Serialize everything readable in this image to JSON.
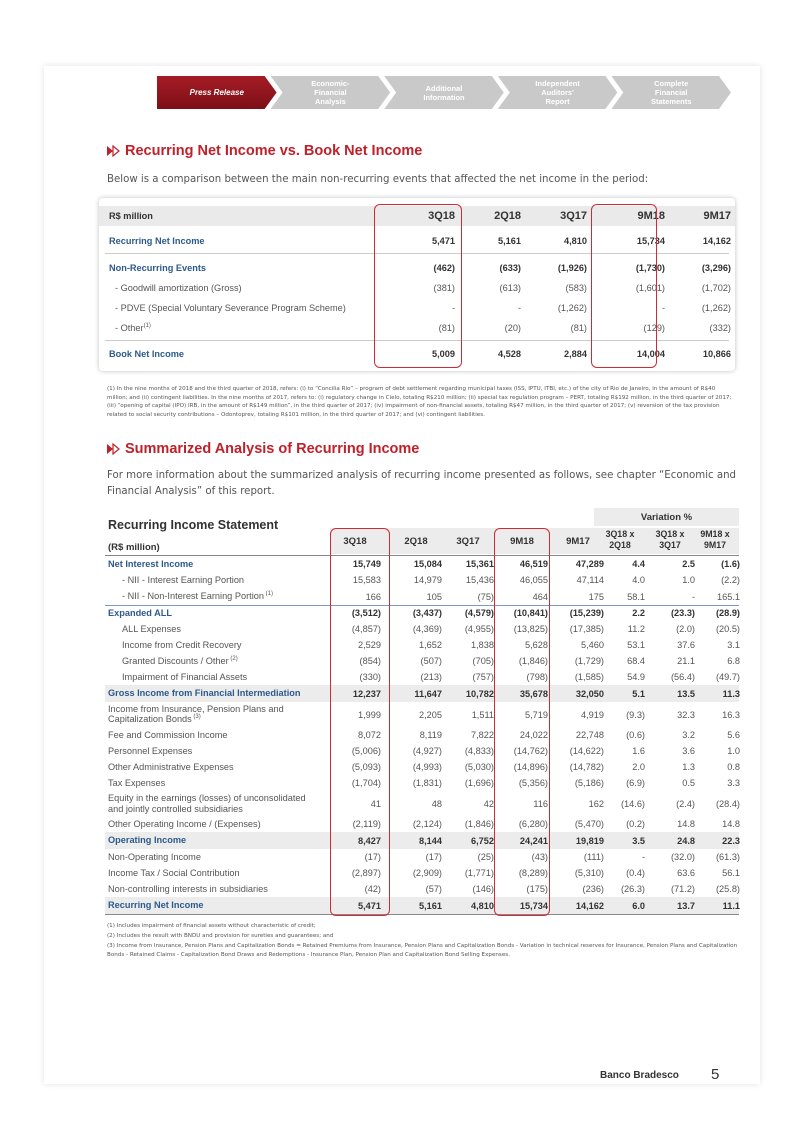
{
  "nav": {
    "tabs": [
      {
        "label": "Press Release"
      },
      {
        "label": "Economic-\nFinancial\nAnalysis"
      },
      {
        "label": "Additional\nInformation"
      },
      {
        "label": "Independent\nAuditors'\nReport"
      },
      {
        "label": "Complete\nFinancial\nStatements"
      }
    ]
  },
  "section1": {
    "title": "Recurring Net Income vs. Book Net Income",
    "intro": "Below is a comparison between the main non-recurring events that affected the net income in the period:"
  },
  "table1": {
    "header": {
      "label": "R$ million",
      "cols": [
        "3Q18",
        "2Q18",
        "3Q17",
        "9M18",
        "9M17"
      ]
    },
    "rows": [
      {
        "label": "Recurring Net Income",
        "values": [
          "5,471",
          "5,161",
          "4,810",
          "15,734",
          "14,162"
        ]
      },
      {
        "label": "Non-Recurring Events",
        "values": [
          "(462)",
          "(633)",
          "(1,926)",
          "(1,730)",
          "(3,296)"
        ]
      },
      {
        "label": "- Goodwill amortization (Gross)",
        "values": [
          "(381)",
          "(613)",
          "(583)",
          "(1,601)",
          "(1,702)"
        ]
      },
      {
        "label": "- PDVE (Special Voluntary Severance Program Scheme)",
        "values": [
          "-",
          "-",
          "(1,262)",
          "-",
          "(1,262)"
        ]
      },
      {
        "label": "- Other",
        "sup": "(1)",
        "values": [
          "(81)",
          "(20)",
          "(81)",
          "(129)",
          "(332)"
        ]
      },
      {
        "label": "Book Net Income",
        "values": [
          "5,009",
          "4,528",
          "2,884",
          "14,004",
          "10,866"
        ]
      }
    ]
  },
  "footnote1": "(1) In the nine months of 2018 and the third quarter of 2018, refers: (i) to “Concilia Rio” – program of debt settlement regarding municipal taxes (ISS, IPTU, ITBI, etc.) of the city of Rio de Janeiro, in the amount of R$40 million; and (ii) contingent liabilities. In the nine months of 2017, refers to: (i) regulatory change in Cielo, totaling R$210 million; (ii) special tax regulation program – PERT, totaling R$192 million, in the third quarter of 2017; (iii) “opening of capital (IPO) IRB, in the amount of R$149 million”, in the third quarter of 2017; (iv) impairment of non-financial assets, totaling R$47 million, in the third quarter of 2017; (v) reversion of the tax provision related to social security contributions – Odontoprev, totaling R$101 million, in the third quarter of 2017; and (vi) contingent liabilities.",
  "section2": {
    "title": "Summarized Analysis of Recurring Income",
    "intro": "For more information about the summarized analysis of recurring income presented as follows, see chapter “Economic and Financial Analysis” of this report."
  },
  "table2": {
    "title": "Recurring Income Statement",
    "unit": "(R$ million)",
    "variation_label": "Variation %",
    "cols": [
      "3Q18",
      "2Q18",
      "3Q17",
      "9M18",
      "9M17"
    ],
    "var_cols": [
      "3Q18 x\n2Q18",
      "3Q18 x\n3Q17",
      "9M18 x\n9M17"
    ],
    "rows": [
      {
        "label": "Net Interest Income",
        "values": [
          "15,749",
          "15,084",
          "15,361",
          "46,519",
          "47,289",
          "4.4",
          "2.5",
          "(1.6)"
        ]
      },
      {
        "label": "- NII - Interest Earning Portion",
        "values": [
          "15,583",
          "14,979",
          "15,436",
          "46,055",
          "47,114",
          "4.0",
          "1.0",
          "(2.2)"
        ]
      },
      {
        "label": "- NII - Non-Interest Earning Portion",
        "sup": "(1)",
        "values": [
          "166",
          "105",
          "(75)",
          "464",
          "175",
          "58.1",
          "-",
          "165.1"
        ]
      },
      {
        "label": "Expanded ALL",
        "values": [
          "(3,512)",
          "(3,437)",
          "(4,579)",
          "(10,841)",
          "(15,239)",
          "2.2",
          "(23.3)",
          "(28.9)"
        ]
      },
      {
        "label": "ALL Expenses",
        "values": [
          "(4,857)",
          "(4,369)",
          "(4,955)",
          "(13,825)",
          "(17,385)",
          "11.2",
          "(2.0)",
          "(20.5)"
        ]
      },
      {
        "label": "Income from Credit Recovery",
        "values": [
          "2,529",
          "1,652",
          "1,838",
          "5,628",
          "5,460",
          "53.1",
          "37.6",
          "3.1"
        ]
      },
      {
        "label": "Granted Discounts / Other",
        "sup": "(2)",
        "values": [
          "(854)",
          "(507)",
          "(705)",
          "(1,846)",
          "(1,729)",
          "68.4",
          "21.1",
          "6.8"
        ]
      },
      {
        "label": "Impairment of Financial Assets",
        "values": [
          "(330)",
          "(213)",
          "(757)",
          "(798)",
          "(1,585)",
          "54.9",
          "(56.4)",
          "(49.7)"
        ]
      },
      {
        "label": "Gross Income from Financial Intermediation",
        "values": [
          "12,237",
          "11,647",
          "10,782",
          "35,678",
          "32,050",
          "5.1",
          "13.5",
          "11.3"
        ]
      },
      {
        "label": "Income from Insurance, Pension Plans and Capitalization Bonds",
        "sup": "(3)",
        "values": [
          "1,999",
          "2,205",
          "1,511",
          "5,719",
          "4,919",
          "(9.3)",
          "32.3",
          "16.3"
        ]
      },
      {
        "label": "Fee and Commission Income",
        "values": [
          "8,072",
          "8,119",
          "7,822",
          "24,022",
          "22,748",
          "(0.6)",
          "3.2",
          "5.6"
        ]
      },
      {
        "label": "Personnel Expenses",
        "values": [
          "(5,006)",
          "(4,927)",
          "(4,833)",
          "(14,762)",
          "(14,622)",
          "1.6",
          "3.6",
          "1.0"
        ]
      },
      {
        "label": "Other Administrative Expenses",
        "values": [
          "(5,093)",
          "(4,993)",
          "(5,030)",
          "(14,896)",
          "(14,782)",
          "2.0",
          "1.3",
          "0.8"
        ]
      },
      {
        "label": "Tax Expenses",
        "values": [
          "(1,704)",
          "(1,831)",
          "(1,696)",
          "(5,356)",
          "(5,186)",
          "(6.9)",
          "0.5",
          "3.3"
        ]
      },
      {
        "label": "Equity in the earnings (losses) of unconsolidated and jointly controlled subsidiaries",
        "values": [
          "41",
          "48",
          "42",
          "116",
          "162",
          "(14.6)",
          "(2.4)",
          "(28.4)"
        ]
      },
      {
        "label": "Other Operating Income / (Expenses)",
        "values": [
          "(2,119)",
          "(2,124)",
          "(1,846)",
          "(6,280)",
          "(5,470)",
          "(0.2)",
          "14.8",
          "14.8"
        ]
      },
      {
        "label": "Operating Income",
        "values": [
          "8,427",
          "8,144",
          "6,752",
          "24,241",
          "19,819",
          "3.5",
          "24.8",
          "22.3"
        ]
      },
      {
        "label": "Non-Operating Income",
        "values": [
          "(17)",
          "(17)",
          "(25)",
          "(43)",
          "(111)",
          "-",
          "(32.0)",
          "(61.3)"
        ]
      },
      {
        "label": "Income Tax / Social Contribution",
        "values": [
          "(2,897)",
          "(2,909)",
          "(1,771)",
          "(8,289)",
          "(5,310)",
          "(0.4)",
          "63.6",
          "56.1"
        ]
      },
      {
        "label": "Non-controlling interests in subsidiaries",
        "values": [
          "(42)",
          "(57)",
          "(146)",
          "(175)",
          "(236)",
          "(26.3)",
          "(71.2)",
          "(25.8)"
        ]
      },
      {
        "label": "Recurring Net Income",
        "values": [
          "5,471",
          "5,161",
          "4,810",
          "15,734",
          "14,162",
          "6.0",
          "13.7",
          "11.1"
        ]
      }
    ]
  },
  "footnotes2": [
    "(1) Includes impairment of financial assets without characteristic of credit;",
    "(2) Includes the result with BNDU and provision for sureties and guarantees; and",
    "(3) Income from Insurance, Pension Plans and Capitalization Bonds = Retained Premiums from Insurance, Pension Plans and Capitalization Bonds - Variation in technical reserves for Insurance, Pension Plans and Capitalization Bonds - Retained Claims - Capitalization Bond Draws and Redemptions - Insurance Plan, Pension Plan and Capitalization Bond Selling Expenses."
  ],
  "footer": {
    "bank": "Banco Bradesco",
    "page": "5"
  },
  "colors": {
    "accent_red": "#c0202a",
    "label_blue": "#2d5a8c",
    "tab_grey": "#c9c9c9"
  }
}
